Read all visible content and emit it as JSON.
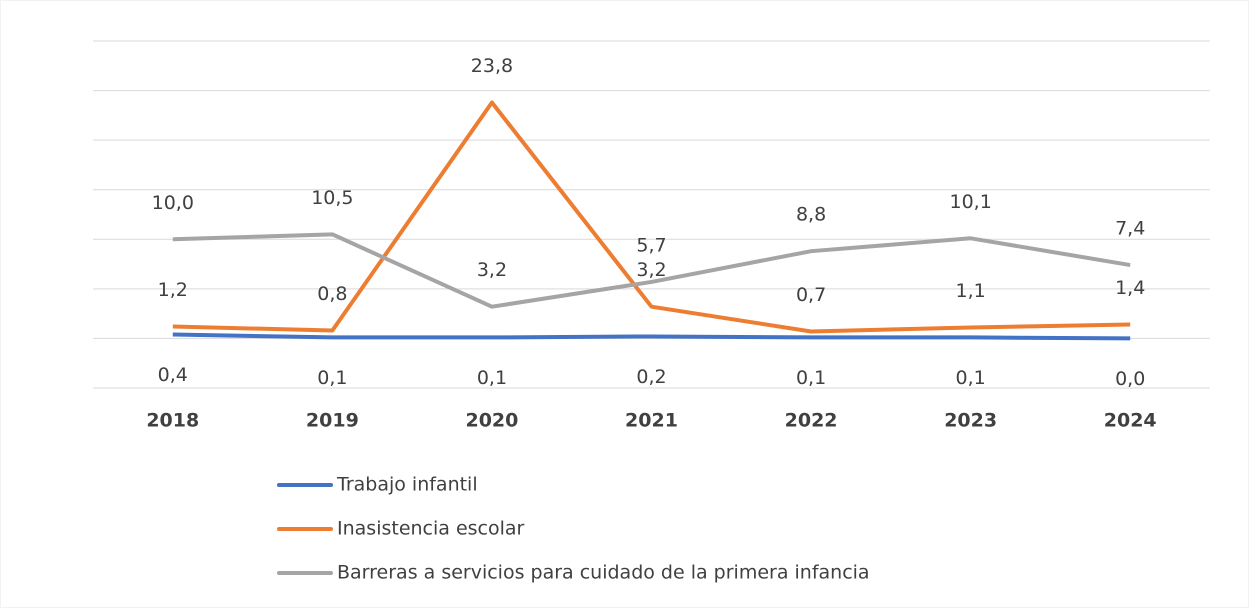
{
  "chart_data": {
    "type": "line",
    "categories": [
      "2018",
      "2019",
      "2020",
      "2021",
      "2022",
      "2023",
      "2024"
    ],
    "series": [
      {
        "name": "Trabajo infantil",
        "color": "#4472c4",
        "values": [
          0.4,
          0.1,
          0.1,
          0.2,
          0.1,
          0.1,
          0.0
        ],
        "value_labels": [
          "0,4",
          "0,1",
          "0,1",
          "0,2",
          "0,1",
          "0,1",
          "0,0"
        ]
      },
      {
        "name": "Inasistencia escolar",
        "color": "#ed7d31",
        "values": [
          1.2,
          0.8,
          23.8,
          3.2,
          0.7,
          1.1,
          1.4
        ],
        "value_labels": [
          "1,2",
          "0,8",
          "23,8",
          "3,2",
          "0,7",
          "1,1",
          "1,4"
        ]
      },
      {
        "name": "Barreras a servicios para cuidado de la primera infancia",
        "color": "#a5a5a5",
        "values": [
          10.0,
          10.5,
          3.2,
          5.7,
          8.8,
          10.1,
          7.4
        ],
        "value_labels": [
          "10,0",
          "10,5",
          "3,2",
          "5,7",
          "8,8",
          "10,1",
          "7,4"
        ]
      }
    ],
    "ylim": [
      -5,
      30
    ],
    "yticks": [
      -5,
      0,
      5,
      10,
      15,
      20,
      25,
      30
    ],
    "grid": true,
    "legend": "bottom"
  }
}
